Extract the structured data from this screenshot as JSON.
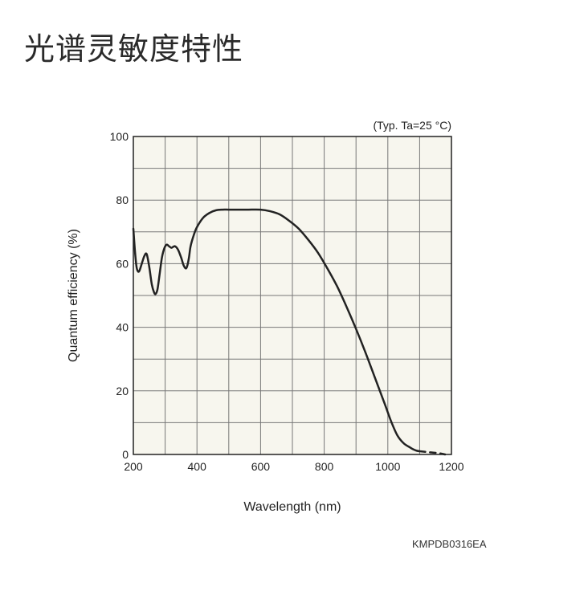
{
  "page": {
    "title": "光谱灵敏度特性",
    "doc_code": "KMPDB0316EA"
  },
  "chart_data": {
    "type": "line",
    "condition_note": "(Typ. Ta=25 °C)",
    "xlabel": "Wavelength (nm)",
    "ylabel": "Quantum efficiency (%)",
    "xlim": [
      200,
      1200
    ],
    "ylim": [
      0,
      100
    ],
    "x_ticks": [
      200,
      400,
      600,
      800,
      1000,
      1200
    ],
    "y_ticks": [
      0,
      20,
      40,
      60,
      80,
      100
    ],
    "grid": true,
    "colors": {
      "background": "#f7f6ee",
      "grid": "#777777",
      "line": "#222222"
    },
    "series": [
      {
        "style": "solid",
        "x": [
          200,
          205,
          210,
          215,
          220,
          228,
          235,
          242,
          250,
          258,
          265,
          270,
          276,
          283,
          290,
          298,
          305,
          312,
          320,
          330,
          340,
          350,
          358,
          365,
          370,
          375,
          380,
          390,
          400,
          420,
          440,
          460,
          480,
          500,
          530,
          560,
          600,
          630,
          660,
          690,
          720,
          750,
          780,
          810,
          840,
          870,
          900,
          930,
          960,
          990,
          1010,
          1030,
          1050,
          1070,
          1080,
          1090,
          1100
        ],
        "y": [
          71,
          64,
          59,
          57.5,
          58,
          60.5,
          62.5,
          63,
          59,
          53.5,
          51,
          50.5,
          52,
          57,
          62,
          65,
          66,
          65.5,
          65,
          65.5,
          64.5,
          62,
          59.5,
          58.5,
          59.5,
          62,
          65.5,
          69,
          71.5,
          74.5,
          76,
          76.8,
          77,
          77,
          77,
          77,
          77,
          76.5,
          75.5,
          73.5,
          71,
          67.5,
          63.5,
          58.5,
          53,
          46.5,
          39.5,
          32,
          24,
          16,
          10.5,
          6,
          3.5,
          2.2,
          1.6,
          1.2,
          1
        ]
      },
      {
        "style": "dashed",
        "x": [
          1100,
          1120,
          1140,
          1160,
          1180
        ],
        "y": [
          1,
          0.8,
          0.6,
          0.4,
          0
        ]
      }
    ]
  }
}
